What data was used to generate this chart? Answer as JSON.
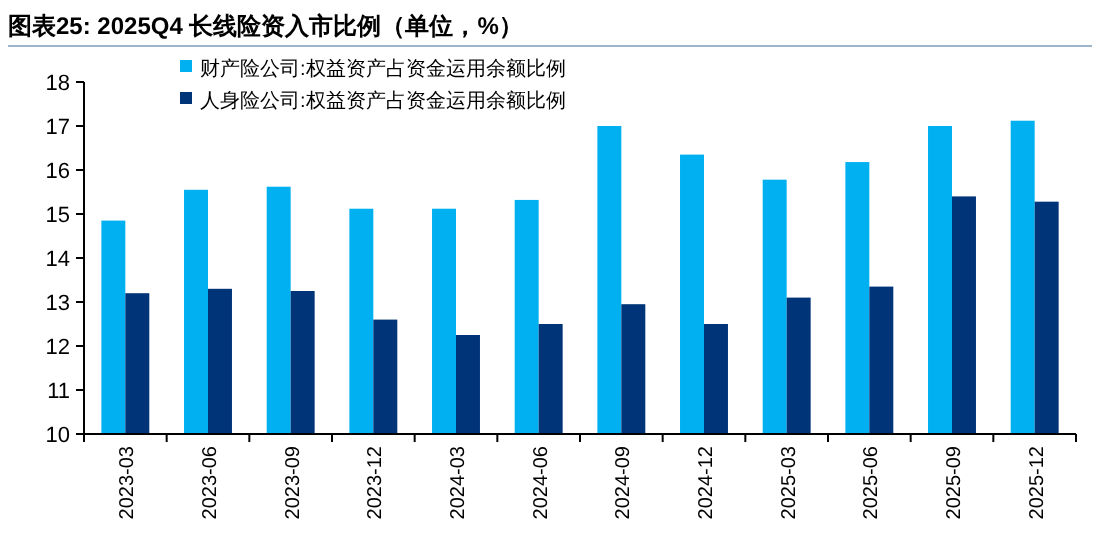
{
  "chart_data": {
    "type": "bar",
    "title": "图表25:  2025Q4 长线险资入市比例（单位，%）",
    "categories": [
      "2023-03",
      "2023-06",
      "2023-09",
      "2023-12",
      "2024-03",
      "2024-06",
      "2024-09",
      "2024-12",
      "2025-03",
      "2025-06",
      "2025-09",
      "2025-12"
    ],
    "series": [
      {
        "name": "财产险公司:权益资产占资金运用余额比例",
        "color": "#00b0f0",
        "values": [
          14.85,
          15.55,
          15.62,
          15.12,
          15.12,
          15.32,
          17.0,
          16.35,
          15.78,
          16.18,
          17.0,
          17.12
        ]
      },
      {
        "name": "人身险公司:权益资产占资金运用余额比例",
        "color": "#003478",
        "values": [
          13.2,
          13.3,
          13.25,
          12.6,
          12.25,
          12.5,
          12.95,
          12.5,
          13.1,
          13.35,
          15.4,
          15.28
        ]
      }
    ],
    "ylim": [
      10,
      18
    ],
    "yticks": [
      10,
      11,
      12,
      13,
      14,
      15,
      16,
      17,
      18
    ],
    "grid": false,
    "legend": "top left"
  }
}
